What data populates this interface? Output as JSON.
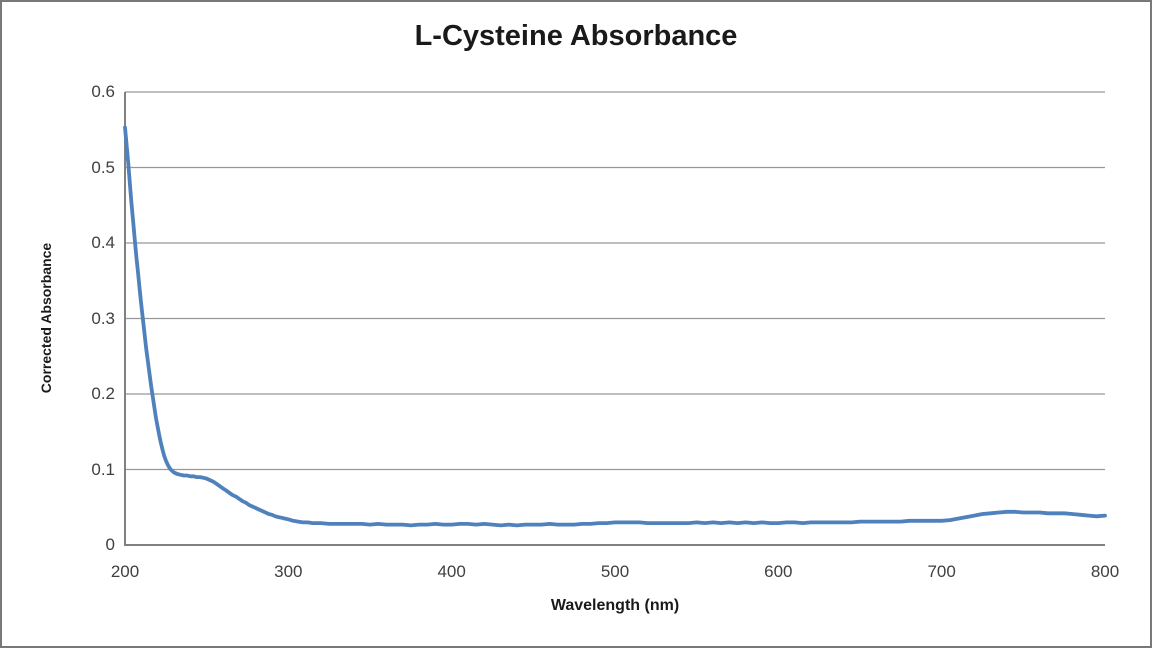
{
  "chart_data": {
    "type": "line",
    "title": "L-Cysteine Absorbance",
    "xlabel": "Wavelength (nm)",
    "ylabel": "Corrected Absorbance",
    "xlim": [
      200,
      800
    ],
    "ylim": [
      0,
      0.6
    ],
    "x_ticks": [
      200,
      300,
      400,
      500,
      600,
      700,
      800
    ],
    "x_tick_labels": [
      "200",
      "300",
      "400",
      "500",
      "600",
      "700",
      "800"
    ],
    "y_ticks": [
      0,
      0.1,
      0.2,
      0.3,
      0.4,
      0.5,
      0.6
    ],
    "y_tick_labels": [
      "0",
      "0.1",
      "0.2",
      "0.3",
      "0.4",
      "0.5",
      "0.6"
    ],
    "grid": "horizontal",
    "legend": "none",
    "points": [
      [
        200,
        0.553
      ],
      [
        201,
        0.53
      ],
      [
        202,
        0.505
      ],
      [
        203,
        0.478
      ],
      [
        204,
        0.452
      ],
      [
        205,
        0.428
      ],
      [
        206,
        0.404
      ],
      [
        207,
        0.381
      ],
      [
        208,
        0.36
      ],
      [
        209,
        0.338
      ],
      [
        210,
        0.318
      ],
      [
        211,
        0.298
      ],
      [
        212,
        0.279
      ],
      [
        213,
        0.26
      ],
      [
        214,
        0.243
      ],
      [
        215,
        0.227
      ],
      [
        216,
        0.211
      ],
      [
        217,
        0.196
      ],
      [
        218,
        0.182
      ],
      [
        219,
        0.168
      ],
      [
        220,
        0.156
      ],
      [
        221,
        0.145
      ],
      [
        222,
        0.135
      ],
      [
        223,
        0.126
      ],
      [
        224,
        0.118
      ],
      [
        225,
        0.112
      ],
      [
        226,
        0.107
      ],
      [
        227,
        0.103
      ],
      [
        228,
        0.1
      ],
      [
        229,
        0.098
      ],
      [
        230,
        0.096
      ],
      [
        232,
        0.094
      ],
      [
        234,
        0.093
      ],
      [
        236,
        0.092
      ],
      [
        238,
        0.092
      ],
      [
        240,
        0.091
      ],
      [
        242,
        0.091
      ],
      [
        244,
        0.09
      ],
      [
        246,
        0.09
      ],
      [
        248,
        0.089
      ],
      [
        250,
        0.088
      ],
      [
        252,
        0.086
      ],
      [
        254,
        0.084
      ],
      [
        256,
        0.081
      ],
      [
        258,
        0.078
      ],
      [
        260,
        0.075
      ],
      [
        262,
        0.072
      ],
      [
        264,
        0.069
      ],
      [
        266,
        0.066
      ],
      [
        268,
        0.064
      ],
      [
        270,
        0.061
      ],
      [
        272,
        0.058
      ],
      [
        274,
        0.056
      ],
      [
        276,
        0.053
      ],
      [
        278,
        0.051
      ],
      [
        280,
        0.049
      ],
      [
        282,
        0.047
      ],
      [
        284,
        0.045
      ],
      [
        286,
        0.043
      ],
      [
        288,
        0.041
      ],
      [
        290,
        0.04
      ],
      [
        292,
        0.038
      ],
      [
        294,
        0.037
      ],
      [
        296,
        0.036
      ],
      [
        298,
        0.035
      ],
      [
        300,
        0.034
      ],
      [
        303,
        0.032
      ],
      [
        306,
        0.031
      ],
      [
        309,
        0.03
      ],
      [
        312,
        0.03
      ],
      [
        315,
        0.029
      ],
      [
        320,
        0.029
      ],
      [
        325,
        0.028
      ],
      [
        330,
        0.028
      ],
      [
        335,
        0.028
      ],
      [
        340,
        0.028
      ],
      [
        345,
        0.028
      ],
      [
        350,
        0.027
      ],
      [
        355,
        0.028
      ],
      [
        360,
        0.027
      ],
      [
        365,
        0.027
      ],
      [
        370,
        0.027
      ],
      [
        375,
        0.026
      ],
      [
        380,
        0.027
      ],
      [
        385,
        0.027
      ],
      [
        390,
        0.028
      ],
      [
        395,
        0.027
      ],
      [
        400,
        0.027
      ],
      [
        405,
        0.028
      ],
      [
        410,
        0.028
      ],
      [
        415,
        0.027
      ],
      [
        420,
        0.028
      ],
      [
        425,
        0.027
      ],
      [
        430,
        0.026
      ],
      [
        435,
        0.027
      ],
      [
        440,
        0.026
      ],
      [
        445,
        0.027
      ],
      [
        450,
        0.027
      ],
      [
        455,
        0.027
      ],
      [
        460,
        0.028
      ],
      [
        465,
        0.027
      ],
      [
        470,
        0.027
      ],
      [
        475,
        0.027
      ],
      [
        480,
        0.028
      ],
      [
        485,
        0.028
      ],
      [
        490,
        0.029
      ],
      [
        495,
        0.029
      ],
      [
        500,
        0.03
      ],
      [
        505,
        0.03
      ],
      [
        510,
        0.03
      ],
      [
        515,
        0.03
      ],
      [
        520,
        0.029
      ],
      [
        525,
        0.029
      ],
      [
        530,
        0.029
      ],
      [
        535,
        0.029
      ],
      [
        540,
        0.029
      ],
      [
        545,
        0.029
      ],
      [
        550,
        0.03
      ],
      [
        555,
        0.029
      ],
      [
        560,
        0.03
      ],
      [
        565,
        0.029
      ],
      [
        570,
        0.03
      ],
      [
        575,
        0.029
      ],
      [
        580,
        0.03
      ],
      [
        585,
        0.029
      ],
      [
        590,
        0.03
      ],
      [
        595,
        0.029
      ],
      [
        600,
        0.029
      ],
      [
        605,
        0.03
      ],
      [
        610,
        0.03
      ],
      [
        615,
        0.029
      ],
      [
        620,
        0.03
      ],
      [
        625,
        0.03
      ],
      [
        630,
        0.03
      ],
      [
        635,
        0.03
      ],
      [
        640,
        0.03
      ],
      [
        645,
        0.03
      ],
      [
        650,
        0.031
      ],
      [
        655,
        0.031
      ],
      [
        660,
        0.031
      ],
      [
        665,
        0.031
      ],
      [
        670,
        0.031
      ],
      [
        675,
        0.031
      ],
      [
        680,
        0.032
      ],
      [
        685,
        0.032
      ],
      [
        690,
        0.032
      ],
      [
        695,
        0.032
      ],
      [
        700,
        0.032
      ],
      [
        705,
        0.033
      ],
      [
        710,
        0.035
      ],
      [
        715,
        0.037
      ],
      [
        720,
        0.039
      ],
      [
        725,
        0.041
      ],
      [
        730,
        0.042
      ],
      [
        735,
        0.043
      ],
      [
        740,
        0.044
      ],
      [
        745,
        0.044
      ],
      [
        750,
        0.043
      ],
      [
        755,
        0.043
      ],
      [
        760,
        0.043
      ],
      [
        765,
        0.042
      ],
      [
        770,
        0.042
      ],
      [
        775,
        0.042
      ],
      [
        780,
        0.041
      ],
      [
        785,
        0.04
      ],
      [
        790,
        0.039
      ],
      [
        795,
        0.038
      ],
      [
        800,
        0.039
      ]
    ],
    "colors": {
      "line": "#4f81bd",
      "gridline": "#989898",
      "axis": "#808080",
      "tick_label": "#404040",
      "title": "#1a1a1a",
      "frame_border": "#787878",
      "background": "#ffffff"
    }
  }
}
